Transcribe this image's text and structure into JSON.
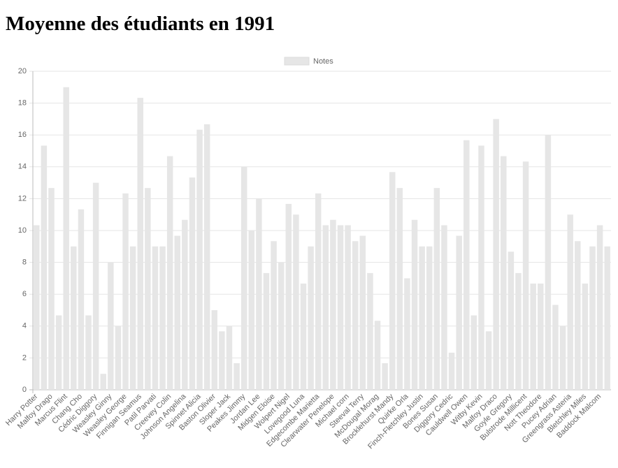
{
  "chart_data": {
    "type": "bar",
    "title": "Moyenne des étudiants en 1991",
    "categories": [
      "Harry Potter",
      null,
      "Malfoy Drago",
      null,
      "Marcus Flint",
      null,
      "Chang Cho",
      null,
      "Cédric Diggory",
      null,
      "Weasley Ginny",
      null,
      "Weasley George",
      null,
      "Finnigan Seamus",
      null,
      "Patil Parvati",
      null,
      "Creevey Colin",
      null,
      "Johnson Angelina",
      null,
      "Spinnet Alicia",
      null,
      "Baston Olivier",
      null,
      "Sloper Jack",
      null,
      "Peakes Jimmy",
      null,
      "Jordan Lee",
      null,
      "Midgen Eloise",
      null,
      "Wolpert Nigel",
      null,
      "Lovegood Luna",
      null,
      "Edgecombe Marietta",
      null,
      "Clearwater Penelope",
      null,
      "Michael corn",
      null,
      "Steeval Terry",
      null,
      "McDougal Morag",
      null,
      "Brocklehurst Mandy",
      null,
      "Quirke Orla",
      null,
      "Finch-Fletchley Justin",
      null,
      "Bones Susan",
      null,
      "Diggory Cedric",
      null,
      "Cauldwell Owen",
      null,
      "Witby Kevin",
      null,
      "Malfoy Draco",
      null,
      "Goyle Gregory",
      null,
      "Bulstrode Millicent",
      null,
      "Nott Theodore",
      null,
      "Pucey Adrian",
      null,
      "Greengrass Asteria",
      null,
      "Bletchley Miles",
      null,
      "Baddock Malcom",
      null
    ],
    "series": [
      {
        "name": "Notes",
        "color": "#e6e6e6",
        "values": [
          10.33,
          15.33,
          12.67,
          4.67,
          19,
          9,
          11.33,
          4.67,
          13,
          1,
          8,
          4,
          12.33,
          9,
          18.33,
          12.67,
          9,
          9,
          14.67,
          9.67,
          10.67,
          13.33,
          16.33,
          16.67,
          5,
          3.67,
          4,
          1.67,
          14,
          10,
          12,
          7.33,
          9.33,
          8,
          11.67,
          11,
          6.67,
          9,
          12.33,
          10.33,
          10.67,
          10.33,
          10.33,
          9.33,
          9.67,
          7.33,
          4.33,
          1.67,
          13.67,
          12.67,
          7,
          10.67,
          9,
          9,
          12.67,
          10.33,
          2.33,
          9.67,
          15.67,
          4.67,
          15.33,
          3.67,
          17,
          14.67,
          8.67,
          7.33,
          14.33,
          6.67,
          6.67,
          16,
          5.33,
          4,
          11,
          9.33,
          6.67,
          9,
          10.33,
          9
        ]
      }
    ],
    "ylim": [
      0,
      20
    ],
    "yticks": [
      0,
      2,
      4,
      6,
      8,
      10,
      12,
      14,
      16,
      18,
      20
    ],
    "grid": true
  }
}
